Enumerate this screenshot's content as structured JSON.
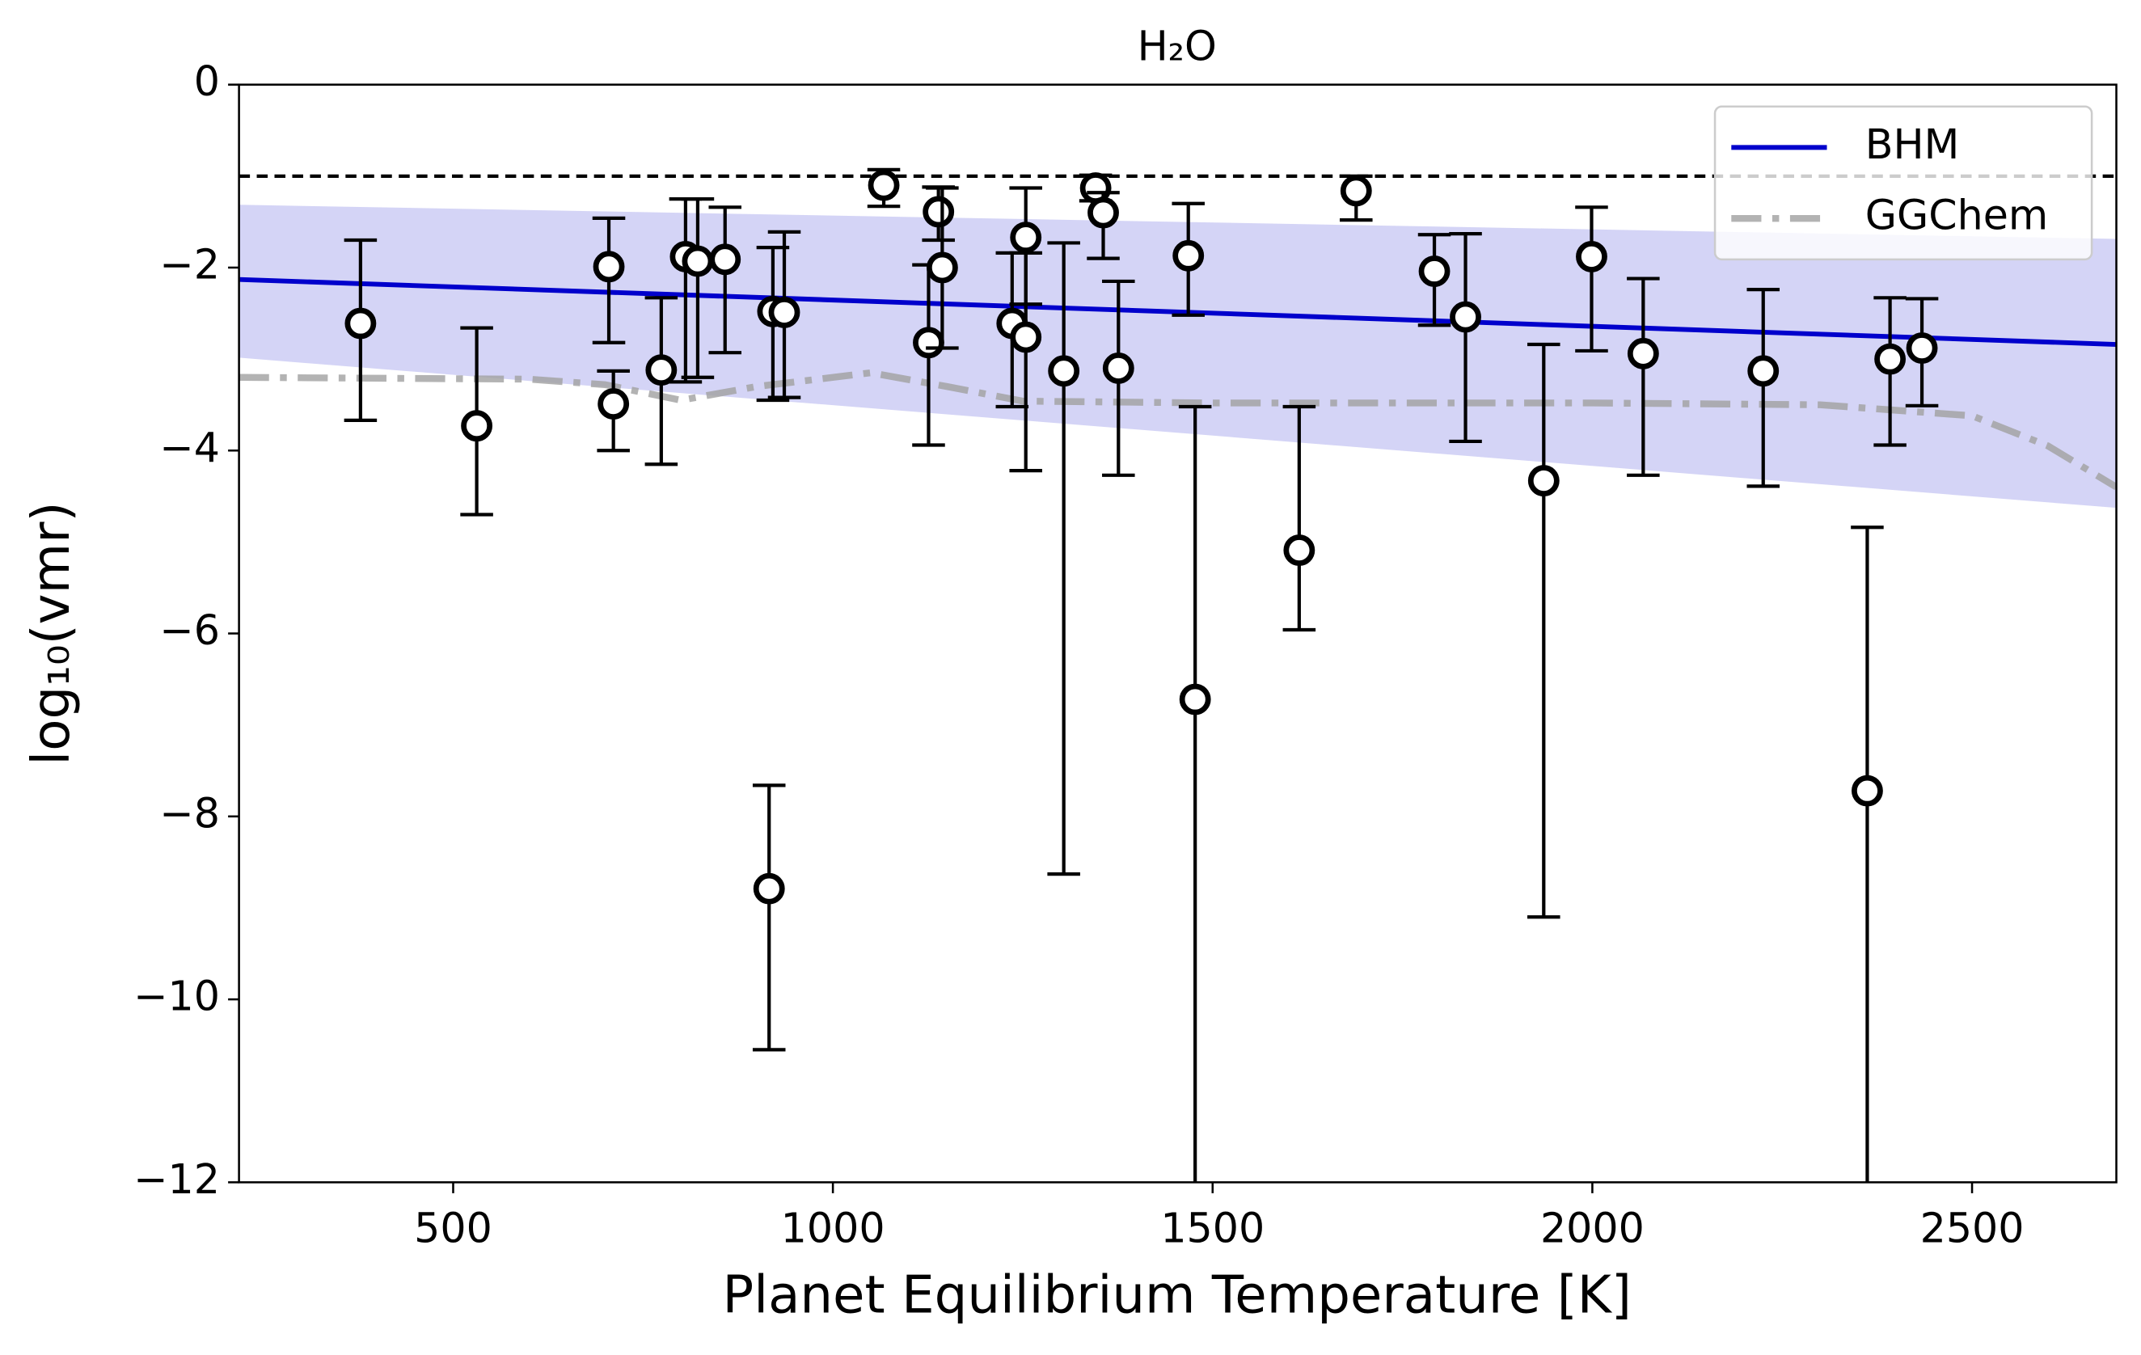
{
  "chart_data": {
    "type": "errorbar",
    "title": "H₂O",
    "xlabel": "Planet Equilibrium Temperature [K]",
    "ylabel": "log₁₀(vmr)",
    "xlim": [
      218,
      2690
    ],
    "ylim": [
      -12,
      0
    ],
    "xticks": [
      500,
      1000,
      1500,
      2000,
      2500
    ],
    "yticks": [
      {
        "value": 0,
        "label": "0"
      },
      {
        "value": -2,
        "label": "−2"
      },
      {
        "value": -4,
        "label": "−4"
      },
      {
        "value": -6,
        "label": "−6"
      },
      {
        "value": -8,
        "label": "−8"
      },
      {
        "value": -10,
        "label": "−10"
      },
      {
        "value": -12,
        "label": "−12"
      }
    ],
    "hline": -1,
    "legend": "upper right",
    "points": {
      "x": [
        378,
        531,
        705,
        711,
        774,
        806,
        822,
        858,
        916,
        921,
        936,
        1067,
        1126,
        1139,
        1144,
        1236,
        1254,
        1254,
        1304,
        1346,
        1356,
        1376,
        1468,
        1477,
        1614,
        1689,
        1792,
        1833,
        1936,
        1999,
        2067,
        2225,
        2362,
        2392,
        2434
      ],
      "values": [
        -2.61,
        -3.73,
        -1.99,
        -3.49,
        -3.12,
        -1.88,
        -1.93,
        -1.91,
        -8.79,
        -2.48,
        -2.49,
        -1.1,
        -2.82,
        -1.39,
        -2.0,
        -2.61,
        -1.67,
        -2.76,
        -3.13,
        -1.13,
        -1.4,
        -3.1,
        -1.87,
        -6.72,
        -5.09,
        -1.16,
        -2.04,
        -2.54,
        -4.33,
        -1.88,
        -2.94,
        -3.13,
        -7.72,
        -3.0,
        -2.88
      ],
      "err_minus": [
        1.06,
        0.97,
        0.83,
        0.51,
        1.03,
        1.37,
        1.27,
        1.02,
        1.76,
        0.97,
        0.93,
        0.23,
        1.12,
        0.31,
        0.88,
        0.91,
        0.73,
        1.46,
        5.5,
        0.14,
        0.5,
        1.17,
        0.65,
        5.8,
        0.87,
        0.32,
        0.59,
        1.36,
        4.77,
        1.03,
        1.33,
        1.26,
        4.8,
        0.94,
        0.63
      ],
      "err_plus": [
        0.91,
        1.07,
        0.53,
        0.36,
        0.79,
        0.63,
        0.68,
        0.57,
        1.13,
        0.7,
        0.88,
        0.17,
        0.85,
        0.27,
        0.87,
        0.77,
        0.54,
        0.92,
        1.4,
        0.14,
        0.22,
        0.95,
        0.57,
        3.2,
        1.57,
        0.16,
        0.4,
        0.91,
        1.49,
        0.54,
        0.82,
        0.89,
        2.88,
        0.67,
        0.54
      ]
    },
    "series": [
      {
        "name": "BHM",
        "color": "#0000cc",
        "x": [
          218,
          2690
        ],
        "values": [
          -2.13,
          -2.84
        ]
      },
      {
        "name": "GGChem",
        "color": "#a0a0a0",
        "x": [
          218,
          600,
          700,
          800,
          900,
          1050,
          1150,
          1250,
          1500,
          2000,
          2300,
          2500,
          2600,
          2690
        ],
        "values": [
          -3.2,
          -3.22,
          -3.28,
          -3.45,
          -3.3,
          -3.15,
          -3.3,
          -3.46,
          -3.48,
          -3.48,
          -3.5,
          -3.62,
          -3.95,
          -4.4
        ]
      }
    ]
  }
}
